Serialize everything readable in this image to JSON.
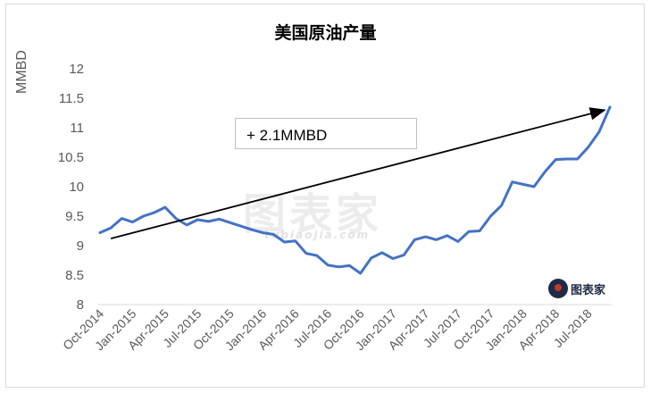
{
  "chart_data": {
    "type": "line",
    "title": "美国原油产量",
    "ylabel": "MMBD",
    "ylim": [
      8,
      12
    ],
    "yticks": [
      "8",
      "8.5",
      "9",
      "9.5",
      "10",
      "10.5",
      "11",
      "11.5",
      "12"
    ],
    "xtick_labels": [
      "Oct-2014",
      "Jan-2015",
      "Apr-2015",
      "Jul-2015",
      "Oct-2015",
      "Jan-2016",
      "Apr-2016",
      "Jul-2016",
      "Oct-2016",
      "Jan-2017",
      "Apr-2017",
      "Jul-2017",
      "Oct-2017",
      "Jan-2018",
      "Apr-2018",
      "Jul-2018"
    ],
    "start": "Oct-2014",
    "series": [
      {
        "color": "#4472c4",
        "values": [
          9.22,
          9.3,
          9.46,
          9.4,
          9.5,
          9.56,
          9.65,
          9.46,
          9.35,
          9.44,
          9.41,
          9.45,
          9.39,
          9.33,
          9.27,
          9.22,
          9.19,
          9.06,
          9.08,
          8.87,
          8.83,
          8.67,
          8.64,
          8.66,
          8.53,
          8.79,
          8.88,
          8.78,
          8.84,
          9.1,
          9.15,
          9.1,
          9.17,
          9.07,
          9.24,
          9.25,
          9.5,
          9.68,
          10.08,
          10.04,
          10.0,
          10.25,
          10.46,
          10.47,
          10.47,
          10.67,
          10.93,
          11.35
        ]
      }
    ],
    "annotation": {
      "text": "+ 2.1MMBD",
      "arrow_from": {
        "x_index": 1,
        "y": 9.12
      },
      "arrow_to": {
        "x_index": 47,
        "y": 11.3
      }
    }
  },
  "watermark": {
    "main": "图表家",
    "sub": "tubiaojia.com"
  },
  "logo": {
    "text": "图表家"
  }
}
